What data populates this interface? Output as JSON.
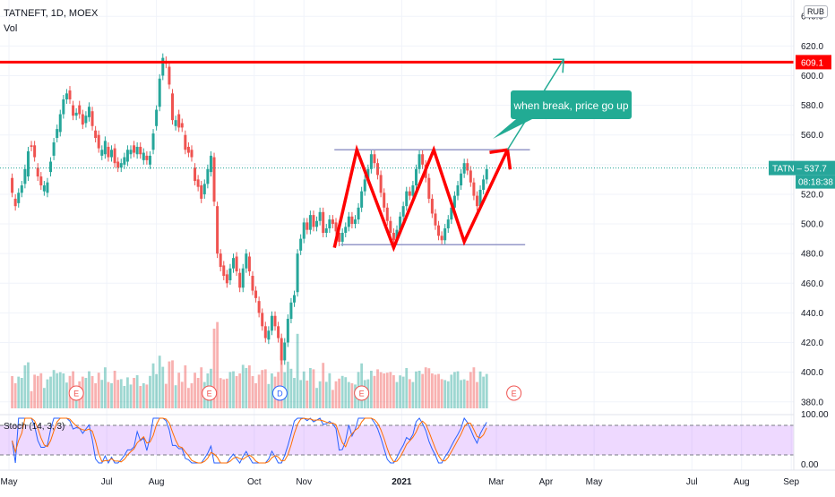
{
  "header": {
    "symbol": "TATNEFT, 1D, MOEX",
    "volume_label": "Vol",
    "currency": "RUB"
  },
  "chart_data": {
    "type": "candlestick",
    "y_axis_ticks": [
      380,
      400,
      420,
      440,
      460,
      480,
      500,
      520,
      540,
      560,
      580,
      600,
      620,
      640
    ],
    "ylim": [
      372,
      648
    ],
    "x_axis_labels": [
      "May",
      "Jul",
      "Aug",
      "Oct",
      "Nov",
      "2021",
      "Mar",
      "Apr",
      "May",
      "Jul",
      "Aug",
      "Sep"
    ],
    "x_label_days": [
      0,
      61,
      92,
      153,
      184,
      245,
      304,
      335,
      365,
      426,
      457,
      488
    ],
    "last_price": {
      "label": "TATN",
      "value": 537.7,
      "value_text": "537.7",
      "countdown": "08:18:38"
    },
    "resistance": {
      "value": 609.1,
      "value_text": "609.1",
      "color": "#ff0000"
    },
    "pattern": {
      "upper_line": {
        "start_day": 203,
        "end_day": 325,
        "value": 550
      },
      "lower_line": {
        "start_day": 207,
        "end_day": 322,
        "value": 486
      },
      "zigzag": [
        [
          203,
          484
        ],
        [
          217,
          550
        ],
        [
          240,
          484
        ],
        [
          265,
          550
        ],
        [
          284,
          488
        ],
        [
          311,
          550
        ]
      ],
      "breakout_arrow": [
        [
          311,
          550
        ],
        [
          346,
          611
        ]
      ],
      "pattern_color": "#ff0000",
      "channel_color": "#9598c8"
    },
    "annotation": {
      "text": "when break, price go up",
      "color": "#22ab94"
    },
    "earnings_markers": [
      {
        "day": 42,
        "label": "E"
      },
      {
        "day": 125,
        "label": "E"
      },
      {
        "day": 169,
        "label": "D"
      },
      {
        "day": 220,
        "label": "E"
      },
      {
        "day": 315,
        "label": "E"
      }
    ],
    "candles": [
      [
        2,
        531,
        521
      ],
      [
        4,
        517,
        512
      ],
      [
        6,
        514,
        521
      ],
      [
        8,
        521,
        526
      ],
      [
        10,
        527,
        537
      ],
      [
        12,
        532,
        549
      ],
      [
        14,
        553,
        552
      ],
      [
        16,
        553,
        545
      ],
      [
        18,
        538,
        532
      ],
      [
        20,
        532,
        526
      ],
      [
        22,
        522,
        526
      ],
      [
        24,
        521,
        528
      ],
      [
        26,
        535,
        542
      ],
      [
        28,
        546,
        555
      ],
      [
        30,
        558,
        564
      ],
      [
        32,
        562,
        574
      ],
      [
        34,
        574,
        584
      ],
      [
        36,
        584,
        588
      ],
      [
        38,
        590,
        584
      ],
      [
        40,
        580,
        573
      ],
      [
        42,
        573,
        575
      ],
      [
        44,
        580,
        574
      ],
      [
        46,
        574,
        567
      ],
      [
        48,
        568,
        573
      ],
      [
        50,
        572,
        579
      ],
      [
        52,
        576,
        566
      ],
      [
        54,
        563,
        558
      ],
      [
        56,
        560,
        551
      ],
      [
        58,
        546,
        550
      ],
      [
        60,
        547,
        556
      ],
      [
        62,
        552,
        545
      ],
      [
        64,
        545,
        550
      ],
      [
        66,
        551,
        541
      ],
      [
        68,
        542,
        538
      ],
      [
        70,
        538,
        541
      ],
      [
        72,
        540,
        545
      ],
      [
        74,
        542,
        550
      ],
      [
        76,
        547,
        550
      ],
      [
        78,
        553,
        548
      ],
      [
        80,
        547,
        552
      ],
      [
        82,
        552,
        547
      ],
      [
        84,
        543,
        548
      ],
      [
        86,
        546,
        543
      ],
      [
        88,
        540,
        546
      ],
      [
        90,
        550,
        561
      ],
      [
        92,
        566,
        577
      ],
      [
        94,
        579,
        598
      ],
      [
        96,
        600,
        612
      ],
      [
        98,
        610,
        608
      ],
      [
        100,
        606,
        594
      ],
      [
        102,
        588,
        570
      ],
      [
        104,
        566,
        570
      ],
      [
        106,
        574,
        565
      ],
      [
        108,
        568,
        565
      ],
      [
        110,
        560,
        550
      ],
      [
        112,
        552,
        548
      ],
      [
        114,
        550,
        545
      ],
      [
        116,
        538,
        529
      ],
      [
        118,
        530,
        525
      ],
      [
        120,
        526,
        517
      ],
      [
        122,
        520,
        527
      ],
      [
        124,
        527,
        537
      ],
      [
        126,
        535,
        546
      ],
      [
        128,
        545,
        515
      ],
      [
        130,
        512,
        480
      ],
      [
        132,
        480,
        471
      ],
      [
        134,
        472,
        465
      ],
      [
        136,
        466,
        460
      ],
      [
        138,
        462,
        470
      ],
      [
        140,
        470,
        477
      ],
      [
        142,
        478,
        468
      ],
      [
        144,
        467,
        457
      ],
      [
        146,
        457,
        470
      ],
      [
        148,
        470,
        480
      ],
      [
        150,
        478,
        468
      ],
      [
        152,
        465,
        455
      ],
      [
        154,
        455,
        450
      ],
      [
        156,
        448,
        440
      ],
      [
        158,
        440,
        431
      ],
      [
        160,
        431,
        423
      ],
      [
        162,
        422,
        428
      ],
      [
        164,
        428,
        438
      ],
      [
        166,
        438,
        431
      ],
      [
        168,
        431,
        423
      ],
      [
        170,
        423,
        408
      ],
      [
        172,
        408,
        420
      ],
      [
        174,
        420,
        436
      ],
      [
        176,
        436,
        447
      ],
      [
        178,
        447,
        452
      ],
      [
        180,
        454,
        480
      ],
      [
        182,
        482,
        490
      ],
      [
        184,
        490,
        501
      ],
      [
        186,
        501,
        496
      ],
      [
        188,
        496,
        506
      ],
      [
        190,
        506,
        498
      ],
      [
        192,
        498,
        502
      ],
      [
        194,
        502,
        508
      ],
      [
        196,
        508,
        494
      ],
      [
        198,
        494,
        497
      ],
      [
        200,
        497,
        503
      ],
      [
        202,
        503,
        500
      ],
      [
        204,
        501,
        495
      ],
      [
        206,
        494,
        488
      ],
      [
        208,
        488,
        494
      ],
      [
        210,
        494,
        498
      ],
      [
        212,
        498,
        505
      ],
      [
        214,
        505,
        500
      ],
      [
        216,
        500,
        503
      ],
      [
        218,
        503,
        511
      ],
      [
        220,
        511,
        522
      ],
      [
        222,
        522,
        530
      ],
      [
        224,
        530,
        537
      ],
      [
        226,
        537,
        547
      ],
      [
        228,
        547,
        541
      ],
      [
        230,
        541,
        533
      ],
      [
        232,
        533,
        521
      ],
      [
        234,
        521,
        511
      ],
      [
        236,
        511,
        502
      ],
      [
        238,
        502,
        494
      ],
      [
        240,
        494,
        489
      ],
      [
        242,
        489,
        496
      ],
      [
        244,
        496,
        505
      ],
      [
        246,
        505,
        512
      ],
      [
        248,
        512,
        522
      ],
      [
        250,
        522,
        519
      ],
      [
        252,
        519,
        526
      ],
      [
        254,
        526,
        537
      ],
      [
        256,
        537,
        547
      ],
      [
        258,
        547,
        540
      ],
      [
        260,
        540,
        531
      ],
      [
        262,
        531,
        517
      ],
      [
        264,
        517,
        507
      ],
      [
        266,
        507,
        499
      ],
      [
        268,
        499,
        492
      ],
      [
        270,
        492,
        489
      ],
      [
        272,
        489,
        497
      ],
      [
        274,
        497,
        503
      ],
      [
        276,
        503,
        511
      ],
      [
        278,
        511,
        519
      ],
      [
        280,
        519,
        526
      ],
      [
        282,
        526,
        534
      ],
      [
        284,
        534,
        541
      ],
      [
        286,
        541,
        536
      ],
      [
        288,
        536,
        528
      ],
      [
        290,
        528,
        519
      ],
      [
        292,
        519,
        512
      ],
      [
        294,
        512,
        523
      ],
      [
        296,
        523,
        530
      ],
      [
        298,
        530,
        537
      ]
    ]
  }
}
